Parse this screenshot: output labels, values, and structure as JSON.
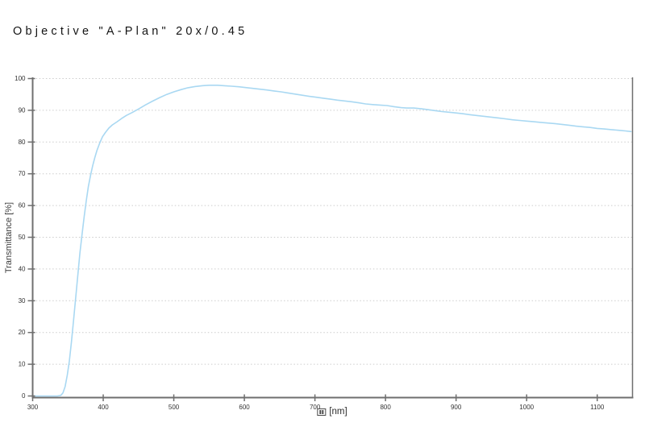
{
  "title": "Objective \"A-Plan\" 20x/0.45",
  "colors": {
    "background": "#ffffff",
    "axis": "#6f6f6f",
    "tick_label": "#333333",
    "gridline": "#cccccc",
    "curve": "#a9d8f2",
    "title_text": "#141414"
  },
  "chart_data": {
    "type": "line",
    "title": "Objective \"A-Plan\" 20x/0.45",
    "xlabel": "[nm]",
    "xlabel_glyph": "missing-glyph-box",
    "ylabel": "Transmittance [%]",
    "xlim": [
      300,
      1150
    ],
    "ylim": [
      0,
      100
    ],
    "x_ticks": [
      300,
      400,
      500,
      600,
      700,
      800,
      900,
      1000,
      1100
    ],
    "y_ticks": [
      0,
      10,
      20,
      30,
      40,
      50,
      60,
      70,
      80,
      90,
      100
    ],
    "grid": "horizontal-dotted",
    "legend": "none",
    "line_color": "#a9d8f2",
    "series": [
      {
        "name": "Transmittance",
        "points": [
          [
            300,
            0
          ],
          [
            320,
            0
          ],
          [
            335,
            0
          ],
          [
            340,
            0.2
          ],
          [
            343,
            1
          ],
          [
            346,
            3
          ],
          [
            349,
            6.5
          ],
          [
            352,
            11
          ],
          [
            355,
            17
          ],
          [
            358,
            24
          ],
          [
            361,
            31
          ],
          [
            364,
            38
          ],
          [
            367,
            45
          ],
          [
            370,
            51
          ],
          [
            373,
            56.5
          ],
          [
            376,
            61.5
          ],
          [
            379,
            66
          ],
          [
            382,
            69.5
          ],
          [
            385,
            72.5
          ],
          [
            388,
            75
          ],
          [
            391,
            77.3
          ],
          [
            395,
            79.7
          ],
          [
            399,
            81.7
          ],
          [
            403,
            83
          ],
          [
            408,
            84.4
          ],
          [
            413,
            85.4
          ],
          [
            419,
            86.3
          ],
          [
            426,
            87.4
          ],
          [
            433,
            88.4
          ],
          [
            441,
            89.3
          ],
          [
            450,
            90.4
          ],
          [
            460,
            91.7
          ],
          [
            470,
            92.9
          ],
          [
            480,
            94
          ],
          [
            490,
            95
          ],
          [
            500,
            95.8
          ],
          [
            510,
            96.5
          ],
          [
            520,
            97.1
          ],
          [
            530,
            97.5
          ],
          [
            540,
            97.75
          ],
          [
            550,
            97.9
          ],
          [
            562,
            97.9
          ],
          [
            572,
            97.75
          ],
          [
            582,
            97.6
          ],
          [
            592,
            97.4
          ],
          [
            602,
            97.15
          ],
          [
            612,
            96.9
          ],
          [
            622,
            96.65
          ],
          [
            632,
            96.4
          ],
          [
            642,
            96.1
          ],
          [
            652,
            95.8
          ],
          [
            662,
            95.45
          ],
          [
            672,
            95.1
          ],
          [
            682,
            94.75
          ],
          [
            692,
            94.4
          ],
          [
            702,
            94.1
          ],
          [
            712,
            93.8
          ],
          [
            722,
            93.5
          ],
          [
            732,
            93.2
          ],
          [
            742,
            92.95
          ],
          [
            752,
            92.7
          ],
          [
            762,
            92.35
          ],
          [
            772,
            92
          ],
          [
            782,
            91.8
          ],
          [
            792,
            91.65
          ],
          [
            802,
            91.5
          ],
          [
            812,
            91.15
          ],
          [
            822,
            90.85
          ],
          [
            830,
            90.7
          ],
          [
            840,
            90.7
          ],
          [
            850,
            90.5
          ],
          [
            860,
            90.2
          ],
          [
            870,
            89.9
          ],
          [
            880,
            89.6
          ],
          [
            890,
            89.4
          ],
          [
            900,
            89.15
          ],
          [
            910,
            88.9
          ],
          [
            920,
            88.6
          ],
          [
            930,
            88.35
          ],
          [
            940,
            88.1
          ],
          [
            950,
            87.85
          ],
          [
            960,
            87.6
          ],
          [
            970,
            87.3
          ],
          [
            980,
            87
          ],
          [
            990,
            86.8
          ],
          [
            1000,
            86.6
          ],
          [
            1010,
            86.4
          ],
          [
            1020,
            86.2
          ],
          [
            1030,
            86
          ],
          [
            1040,
            85.8
          ],
          [
            1050,
            85.55
          ],
          [
            1060,
            85.3
          ],
          [
            1070,
            85
          ],
          [
            1080,
            84.8
          ],
          [
            1090,
            84.6
          ],
          [
            1100,
            84.3
          ],
          [
            1110,
            84.1
          ],
          [
            1120,
            83.9
          ],
          [
            1130,
            83.7
          ],
          [
            1140,
            83.5
          ],
          [
            1148,
            83.3
          ]
        ]
      }
    ]
  }
}
